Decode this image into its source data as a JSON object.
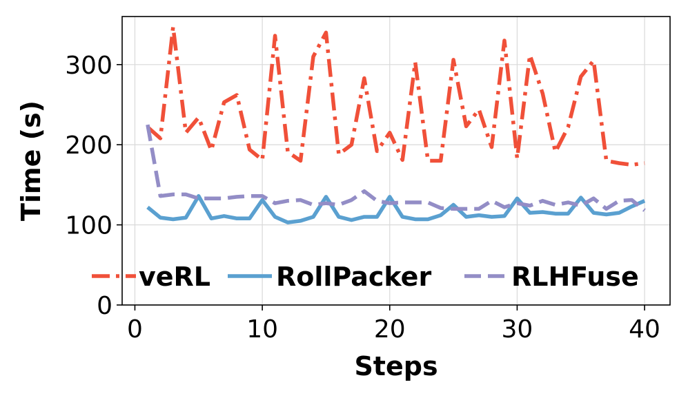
{
  "chart_data": {
    "type": "line",
    "xlabel": "Steps",
    "ylabel": "Time (s)",
    "xlim": [
      -1,
      42
    ],
    "ylim": [
      0,
      360
    ],
    "xticks": [
      0,
      10,
      20,
      30,
      40
    ],
    "yticks": [
      0,
      100,
      200,
      300
    ],
    "grid": true,
    "legend": "lower-center",
    "x": [
      1,
      2,
      3,
      4,
      5,
      6,
      7,
      8,
      9,
      10,
      11,
      12,
      13,
      14,
      15,
      16,
      17,
      18,
      19,
      20,
      21,
      22,
      23,
      24,
      25,
      26,
      27,
      28,
      29,
      30,
      31,
      32,
      33,
      34,
      35,
      36,
      37,
      38,
      39,
      40
    ],
    "series": [
      {
        "name": "veRL",
        "color": "#f05039",
        "dash": "dashdot",
        "values": [
          222,
          208,
          347,
          215,
          234,
          193,
          253,
          262,
          194,
          181,
          336,
          191,
          180,
          310,
          340,
          188,
          200,
          283,
          192,
          215,
          181,
          303,
          180,
          180,
          306,
          223,
          244,
          197,
          330,
          183,
          312,
          264,
          191,
          222,
          285,
          305,
          180,
          177,
          175,
          177
        ]
      },
      {
        "name": "RollPacker",
        "color": "#5aa0d0",
        "dash": "solid",
        "values": [
          122,
          109,
          107,
          109,
          136,
          108,
          111,
          108,
          108,
          131,
          110,
          103,
          105,
          110,
          135,
          110,
          106,
          110,
          110,
          135,
          110,
          107,
          107,
          112,
          125,
          110,
          112,
          110,
          111,
          133,
          115,
          116,
          114,
          114,
          134,
          115,
          113,
          115,
          123,
          130
        ]
      },
      {
        "name": "RLHFuse",
        "color": "#938dc6",
        "dash": "dashed",
        "values": [
          225,
          136,
          138,
          138,
          133,
          133,
          133,
          135,
          136,
          136,
          127,
          130,
          131,
          125,
          127,
          125,
          131,
          142,
          130,
          127,
          128,
          128,
          128,
          121,
          120,
          120,
          120,
          130,
          122,
          127,
          124,
          130,
          125,
          128,
          124,
          133,
          120,
          130,
          131,
          118
        ]
      }
    ]
  }
}
